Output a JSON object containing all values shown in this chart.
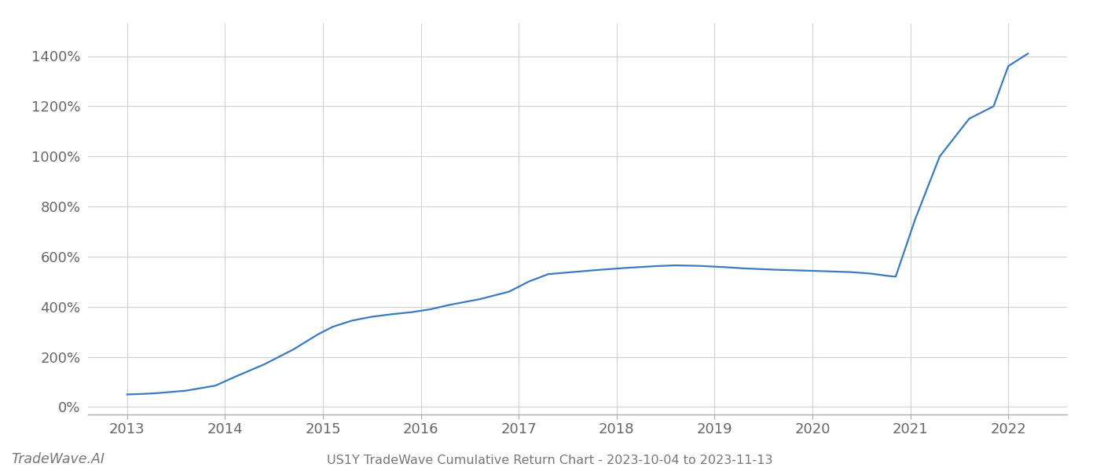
{
  "title": "US1Y TradeWave Cumulative Return Chart - 2023-10-04 to 2023-11-13",
  "watermark": "TradeWave.AI",
  "line_color": "#3a7abf",
  "background_color": "#ffffff",
  "grid_color": "#d0d0d0",
  "x_years": [
    2013.0,
    2013.15,
    2013.3,
    2013.6,
    2013.9,
    2014.1,
    2014.4,
    2014.7,
    2014.95,
    2015.1,
    2015.3,
    2015.5,
    2015.7,
    2015.9,
    2016.1,
    2016.3,
    2016.6,
    2016.9,
    2017.1,
    2017.3,
    2017.6,
    2017.85,
    2018.1,
    2018.4,
    2018.6,
    2018.85,
    2019.1,
    2019.3,
    2019.6,
    2019.85,
    2020.1,
    2020.4,
    2020.6,
    2020.75,
    2020.85,
    2021.05,
    2021.3,
    2021.6,
    2021.85,
    2022.0,
    2022.2
  ],
  "y_values": [
    50,
    52,
    55,
    65,
    85,
    120,
    170,
    230,
    290,
    320,
    345,
    360,
    370,
    378,
    390,
    408,
    430,
    460,
    500,
    530,
    540,
    548,
    555,
    562,
    565,
    563,
    558,
    553,
    548,
    545,
    542,
    538,
    532,
    524,
    520,
    750,
    1000,
    1150,
    1200,
    1360,
    1410
  ],
  "xlim": [
    2012.6,
    2022.6
  ],
  "ylim": [
    -30,
    1530
  ],
  "yticks": [
    0,
    200,
    400,
    600,
    800,
    1000,
    1200,
    1400
  ],
  "xticks": [
    2013,
    2014,
    2015,
    2016,
    2017,
    2018,
    2019,
    2020,
    2021,
    2022
  ],
  "line_width": 1.6,
  "title_fontsize": 11.5,
  "tick_fontsize": 13,
  "watermark_fontsize": 12.5
}
